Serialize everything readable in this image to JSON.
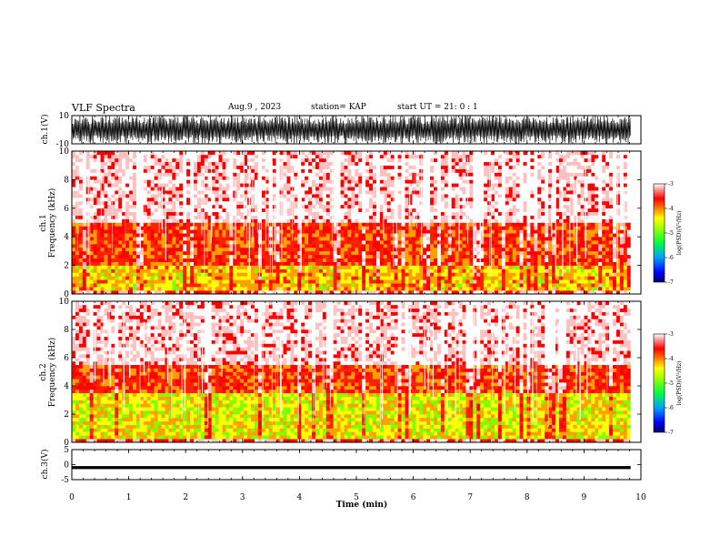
{
  "header": {
    "title": "VLF Spectra",
    "date": "Aug.9  , 2023",
    "station": "station= KAP",
    "start": "start  UT  =   21: 0  : 1"
  },
  "chart_data": [
    {
      "type": "line",
      "panel": "ch1-waveform",
      "ylabel": "ch.1(V)",
      "ylim": [
        -10,
        10
      ],
      "yticks": [
        "10",
        "-10"
      ],
      "description_of_signal": "dense broadband waveform saturating near full scale"
    },
    {
      "type": "heatmap",
      "panel": "ch1-spectrogram",
      "ylabel": "ch.1\nFrequency (kHz)",
      "ylabel_line1": "ch.1",
      "ylabel_line2": "Frequency  (kHz)",
      "ylim": [
        0,
        10
      ],
      "yticks": [
        "0",
        "2",
        "4",
        "6",
        "8",
        "10"
      ],
      "colorbar": {
        "label": "log(PSD)(V²/Hz)",
        "range": [
          -7,
          -3
        ],
        "ticks": [
          "-3",
          "-4",
          "-5",
          "-6",
          "-7"
        ]
      },
      "bands": [
        {
          "freq_khz": [
            0.3,
            2.0
          ],
          "level": -4.8
        },
        {
          "freq_khz": [
            2.0,
            5.0
          ],
          "level": -4.2
        },
        {
          "freq_khz": [
            5.0,
            10.0
          ],
          "level": -3.3
        }
      ]
    },
    {
      "type": "heatmap",
      "panel": "ch2-spectrogram",
      "ylabel": "ch.2\nFrequency (kHz)",
      "ylabel_line1": "ch.2",
      "ylabel_line2": "Frequency  (kHz)",
      "ylim": [
        0,
        10
      ],
      "yticks": [
        "0",
        "2",
        "4",
        "6",
        "8",
        "10"
      ],
      "colorbar": {
        "label": "log(PSD)(V²/Hz)",
        "range": [
          -7,
          -3
        ],
        "ticks": [
          "-3",
          "-4",
          "-5",
          "-6",
          "-7"
        ]
      },
      "bands": [
        {
          "freq_khz": [
            0.3,
            3.5
          ],
          "level": -5.0
        },
        {
          "freq_khz": [
            3.5,
            5.5
          ],
          "level": -4.2
        },
        {
          "freq_khz": [
            5.5,
            10.0
          ],
          "level": -3.3
        }
      ]
    },
    {
      "type": "line",
      "panel": "ch3-waveform",
      "ylabel": "ch.3(V)",
      "ylim": [
        -5,
        5
      ],
      "yticks": [
        "5",
        "0",
        "-5"
      ],
      "signal_band_v": [
        -1.5,
        -0.5
      ]
    }
  ],
  "xaxis": {
    "label": "Time  (min)",
    "range": [
      0,
      10
    ],
    "ticks": [
      "0",
      "1",
      "2",
      "3",
      "4",
      "5",
      "6",
      "7",
      "8",
      "9",
      "10"
    ],
    "data_end_min": 9.82
  },
  "colors": {
    "colormap": [
      "#000080",
      "#0000ff",
      "#00c0ff",
      "#00ff80",
      "#80ff00",
      "#ffff00",
      "#ffa000",
      "#ff2000",
      "#ff0000",
      "#ffc0c0",
      "#ffffff"
    ]
  }
}
